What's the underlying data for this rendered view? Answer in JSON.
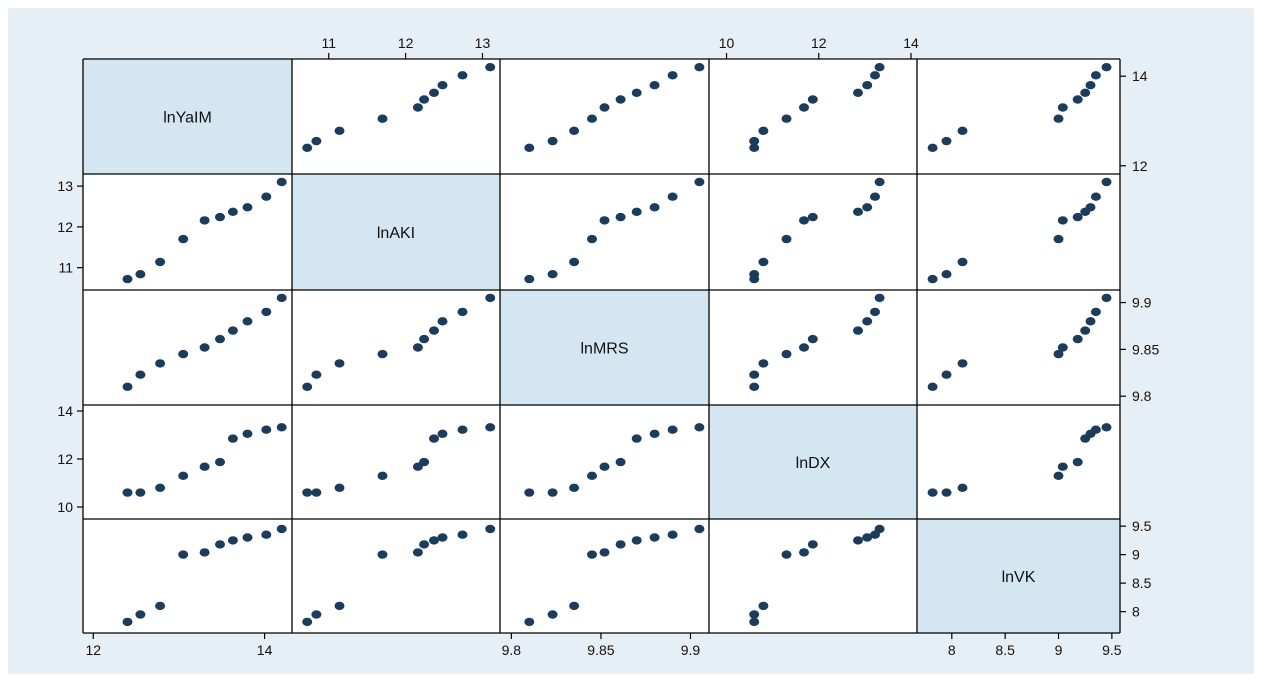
{
  "chart_data": {
    "type": "scatter-matrix",
    "variables": [
      "lnYaIM",
      "lnAKI",
      "lnMRS",
      "lnDX",
      "lnVK"
    ],
    "axes": {
      "lnYaIM": {
        "range": [
          11.95,
          14.25
        ],
        "ticks": [
          12,
          14
        ],
        "tick_labels": [
          "12",
          "14"
        ]
      },
      "lnAKI": {
        "range": [
          10.6,
          13.15
        ],
        "ticks": [
          11,
          12,
          13
        ],
        "tick_labels": [
          "11",
          "12",
          "13"
        ]
      },
      "lnMRS": {
        "range": [
          9.797,
          9.907
        ],
        "ticks": [
          9.8,
          9.85,
          9.9
        ],
        "tick_labels": [
          "9.8",
          "9.85",
          "9.9"
        ]
      },
      "lnDX": {
        "range": [
          9.75,
          14.0
        ],
        "ticks": [
          10,
          12,
          14
        ],
        "tick_labels": [
          "10",
          "12",
          "14"
        ]
      },
      "lnVK": {
        "range": [
          7.73,
          9.52
        ],
        "ticks": [
          8,
          8.5,
          9,
          9.5
        ],
        "tick_labels": [
          "8",
          "8.5",
          "9",
          "9.5"
        ]
      }
    },
    "observations": {
      "lnYaIM": [
        12.4,
        12.55,
        12.78,
        13.05,
        13.3,
        13.48,
        13.63,
        13.8,
        14.02,
        14.2
      ],
      "lnAKI": [
        10.72,
        10.84,
        11.14,
        11.7,
        12.16,
        12.24,
        12.37,
        12.48,
        12.74,
        13.1
      ],
      "lnMRS": [
        9.81,
        9.823,
        9.835,
        9.845,
        9.852,
        9.861,
        9.87,
        9.88,
        9.89,
        9.905
      ],
      "lnDX": [
        10.6,
        10.6,
        10.8,
        11.3,
        11.68,
        11.87,
        12.85,
        13.05,
        13.22,
        13.32
      ],
      "lnVK": [
        7.82,
        7.95,
        8.1,
        9.0,
        9.04,
        9.18,
        9.25,
        9.3,
        9.35,
        9.45
      ]
    },
    "grid": false,
    "legend": "none",
    "colors": {
      "background": "#e6eff5",
      "panel_bg": "#ffffff",
      "diag_bg": "#d3e6f1",
      "marker": "#1c3c5c",
      "frame": "#000000"
    }
  }
}
